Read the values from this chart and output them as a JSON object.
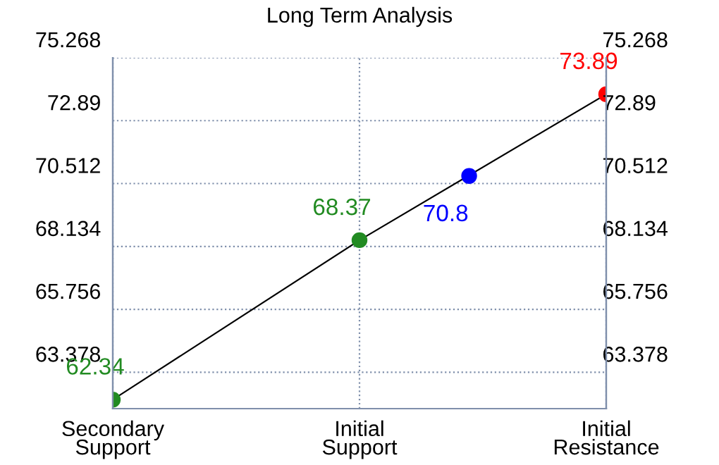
{
  "chart_data": {
    "type": "line",
    "title": "Long Term Analysis",
    "categories": [
      "Secondary\nSupport",
      null,
      null,
      null,
      null,
      null,
      null,
      null,
      null,
      "Initial\nSupport",
      null,
      null,
      null,
      null,
      null,
      null,
      null,
      null,
      "Initial\nResistance"
    ],
    "ylim": [
      62.0,
      75.268
    ],
    "yticks": [
      63.378,
      65.756,
      68.134,
      70.512,
      72.89,
      75.268
    ],
    "y2lim": [
      62.0,
      75.268
    ],
    "y2ticks": [
      63.378,
      65.756,
      68.134,
      70.512,
      72.89,
      75.268
    ],
    "grid": true,
    "data_labels": true,
    "series": [
      {
        "color": "#000000",
        "values": [
          62.34,
          null,
          null,
          null,
          null,
          null,
          null,
          null,
          null,
          68.37,
          null,
          null,
          null,
          null,
          null,
          null,
          null,
          null,
          73.89
        ],
        "colors": [
          "#228b22",
          null,
          null,
          null,
          null,
          null,
          null,
          null,
          null,
          "#228b22",
          null,
          null,
          null,
          null,
          null,
          null,
          null,
          null,
          "#ff0000"
        ],
        "marker": "circle"
      },
      {
        "type": "scatter",
        "values": [
          null,
          null,
          null,
          null,
          null,
          null,
          null,
          null,
          null,
          null,
          null,
          null,
          null,
          70.8,
          null,
          null,
          null,
          null,
          null
        ],
        "color": "#0000ff",
        "marker": "circle"
      }
    ]
  }
}
